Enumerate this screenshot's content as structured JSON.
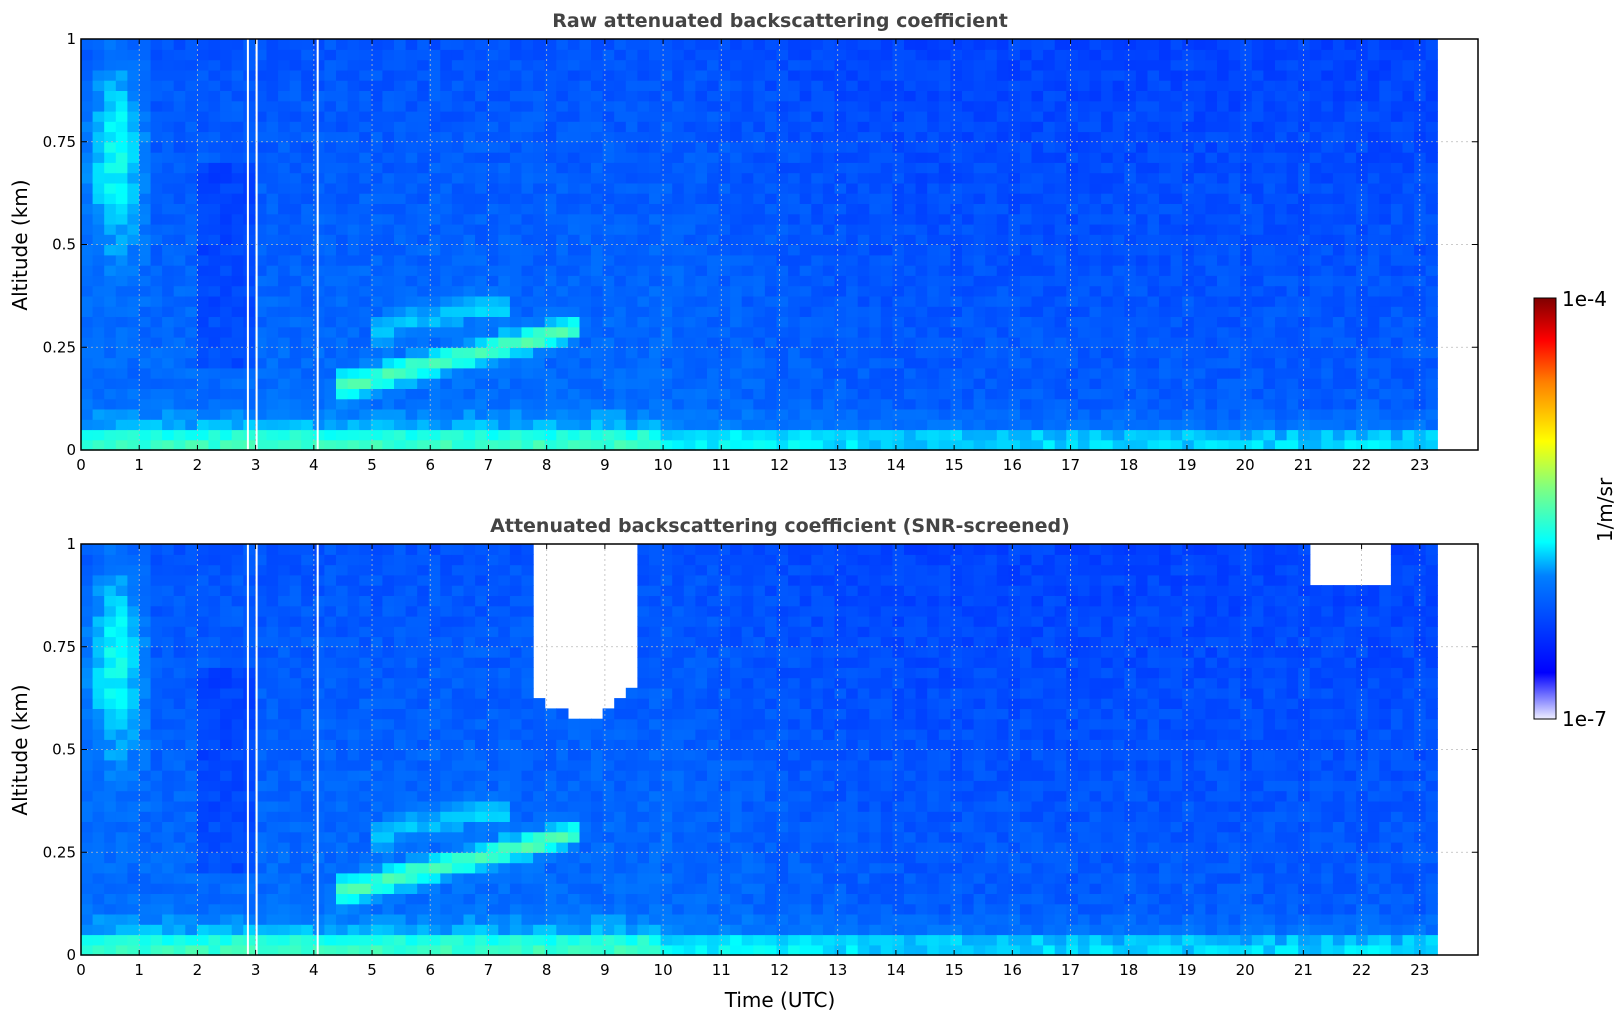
{
  "chart_data": [
    {
      "type": "heatmap",
      "title": "Raw attenuated backscattering coefficient",
      "xlabel": "",
      "ylabel": "Altitude (km)",
      "xlim": [
        0,
        24
      ],
      "ylim": [
        0,
        1
      ],
      "x_ticks": [
        "0",
        "1",
        "2",
        "3",
        "4",
        "5",
        "6",
        "7",
        "8",
        "9",
        "10",
        "11",
        "12",
        "13",
        "14",
        "15",
        "16",
        "17",
        "18",
        "19",
        "20",
        "21",
        "22",
        "23"
      ],
      "y_ticks": [
        "0",
        "0.25",
        "0.5",
        "0.75",
        "1"
      ],
      "y_values": [
        0,
        0.25,
        0.5,
        0.75,
        1
      ],
      "data_extent_x": [
        0,
        23.3
      ],
      "grid": true,
      "screened": false
    },
    {
      "type": "heatmap",
      "title": "Attenuated backscattering coefficient (SNR-screened)",
      "xlabel": "Time (UTC)",
      "ylabel": "Altitude (km)",
      "xlim": [
        0,
        24
      ],
      "ylim": [
        0,
        1
      ],
      "x_ticks": [
        "0",
        "1",
        "2",
        "3",
        "4",
        "5",
        "6",
        "7",
        "8",
        "9",
        "10",
        "11",
        "12",
        "13",
        "14",
        "15",
        "16",
        "17",
        "18",
        "19",
        "20",
        "21",
        "22",
        "23"
      ],
      "y_ticks": [
        "0",
        "0.25",
        "0.5",
        "0.75",
        "1"
      ],
      "y_values": [
        0,
        0.25,
        0.5,
        0.75,
        1
      ],
      "data_extent_x": [
        0,
        23.3
      ],
      "grid": true,
      "screened": true
    }
  ],
  "colorbar": {
    "label": "1/m/sr",
    "max_label": "1e-4",
    "min_label": "1e-7",
    "scale": "log",
    "range": [
      1e-07,
      0.0001
    ],
    "colormap": "jet"
  }
}
